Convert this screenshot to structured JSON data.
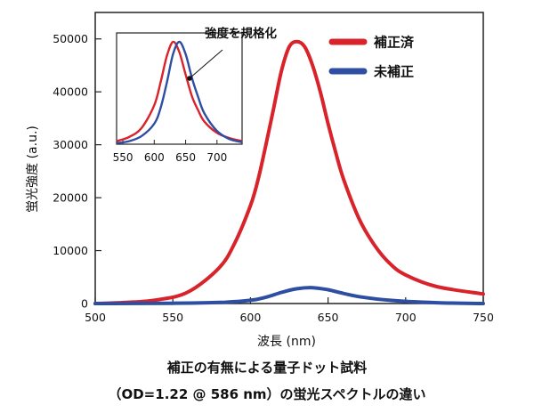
{
  "chart_data": {
    "type": "line",
    "xlabel": "波長 (nm)",
    "ylabel": "蛍光強度 (a.u.)",
    "xlim": [
      500,
      750
    ],
    "ylim": [
      0,
      55000
    ],
    "xticks": [
      500,
      550,
      600,
      650,
      700,
      750
    ],
    "yticks": [
      0,
      10000,
      20000,
      30000,
      40000,
      50000
    ],
    "series": [
      {
        "name": "補正済",
        "color": "#d8232a",
        "x": [
          500,
          520,
          540,
          560,
          580,
          590,
          600,
          605,
          610,
          615,
          620,
          625,
          630,
          635,
          640,
          645,
          650,
          655,
          660,
          670,
          680,
          690,
          700,
          720,
          750
        ],
        "y": [
          0,
          200,
          700,
          2200,
          6800,
          11500,
          18500,
          23500,
          30000,
          37000,
          44000,
          48500,
          49500,
          48500,
          45000,
          40000,
          34000,
          28500,
          23500,
          16000,
          11000,
          7500,
          5400,
          3200,
          1800
        ]
      },
      {
        "name": "未補正",
        "color": "#2d4ea2",
        "x": [
          500,
          550,
          580,
          600,
          610,
          620,
          630,
          640,
          650,
          660,
          670,
          690,
          720,
          750
        ],
        "y": [
          0,
          50,
          200,
          600,
          1200,
          2100,
          2800,
          3000,
          2600,
          1900,
          1300,
          600,
          150,
          0
        ]
      }
    ],
    "legend": [
      "補正済",
      "未補正"
    ],
    "legend_position": "top-right",
    "inset": {
      "xlim": [
        540,
        740
      ],
      "xticks": [
        550,
        600,
        650,
        700
      ],
      "annotation": "強度を規格化",
      "series": [
        {
          "name": "補正済",
          "color": "#d8232a",
          "x": [
            540,
            560,
            580,
            600,
            610,
            620,
            630,
            640,
            650,
            660,
            670,
            680,
            700,
            720,
            740
          ],
          "y": [
            0.03,
            0.07,
            0.16,
            0.38,
            0.6,
            0.86,
            1.0,
            0.9,
            0.68,
            0.47,
            0.33,
            0.22,
            0.11,
            0.06,
            0.03
          ]
        },
        {
          "name": "未補正",
          "color": "#2d4ea2",
          "x": [
            540,
            560,
            580,
            600,
            610,
            620,
            630,
            640,
            650,
            660,
            670,
            680,
            700,
            720,
            740
          ],
          "y": [
            0.01,
            0.03,
            0.08,
            0.2,
            0.35,
            0.6,
            0.88,
            1.0,
            0.88,
            0.65,
            0.46,
            0.3,
            0.13,
            0.05,
            0.02
          ]
        }
      ]
    }
  },
  "caption": {
    "line1": "補正の有無による量子ドット試料",
    "line2": "（OD=1.22 @ 586 nm）の蛍光スペクトルの違い"
  }
}
